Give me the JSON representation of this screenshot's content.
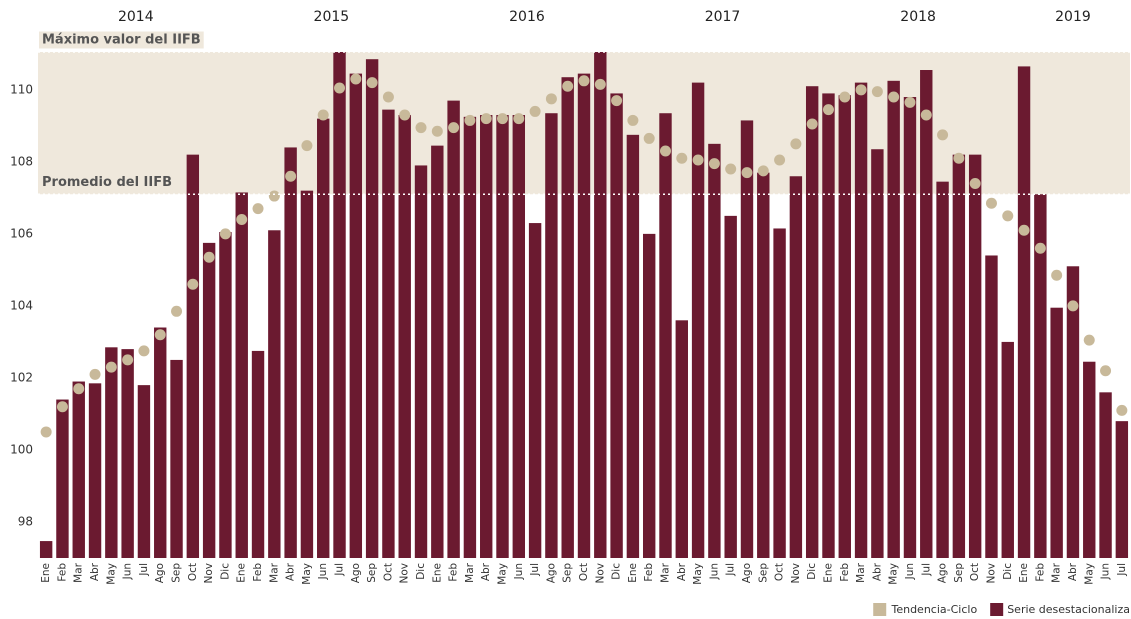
{
  "chart_data": {
    "type": "bar",
    "categories": [
      "Ene",
      "Feb",
      "Mar",
      "Abr",
      "May",
      "Jun",
      "Jul",
      "Ago",
      "Sep",
      "Oct",
      "Nov",
      "Dic",
      "Ene",
      "Feb",
      "Mar",
      "Abr",
      "May",
      "Jun",
      "Jul",
      "Ago",
      "Sep",
      "Oct",
      "Nov",
      "Dic",
      "Ene",
      "Feb",
      "Mar",
      "Abr",
      "May",
      "Jun",
      "Jul",
      "Ago",
      "Sep",
      "Oct",
      "Nov",
      "Dic",
      "Ene",
      "Feb",
      "Mar",
      "Abr",
      "May",
      "Jun",
      "Jul",
      "Ago",
      "Sep",
      "Oct",
      "Nov",
      "Dic",
      "Ene",
      "Feb",
      "Mar",
      "Abr",
      "May",
      "Jun",
      "Jul",
      "Ago",
      "Sep",
      "Oct",
      "Nov",
      "Dic",
      "Ene",
      "Feb",
      "Mar",
      "Abr",
      "May",
      "Jun",
      "Jul"
    ],
    "years": [
      {
        "label": "2014",
        "months": 12
      },
      {
        "label": "2015",
        "months": 12
      },
      {
        "label": "2016",
        "months": 12
      },
      {
        "label": "2017",
        "months": 12
      },
      {
        "label": "2018",
        "months": 12
      },
      {
        "label": "2019",
        "months": 7
      }
    ],
    "series": [
      {
        "name": "Tendencia-Ciclo",
        "type": "scatter",
        "color": "#c8b99a",
        "values": [
          100.5,
          101.2,
          101.7,
          102.1,
          102.3,
          102.5,
          102.75,
          103.2,
          103.85,
          104.6,
          105.35,
          106.0,
          106.4,
          106.7,
          107.05,
          107.6,
          108.45,
          109.3,
          110.05,
          110.3,
          110.2,
          109.8,
          109.3,
          108.95,
          108.85,
          108.95,
          109.15,
          109.2,
          109.2,
          109.2,
          109.4,
          109.75,
          110.1,
          110.25,
          110.15,
          109.7,
          109.15,
          108.65,
          108.3,
          108.1,
          108.05,
          107.95,
          107.8,
          107.7,
          107.75,
          108.05,
          108.5,
          109.05,
          109.45,
          109.8,
          110.0,
          109.95,
          109.8,
          109.65,
          109.3,
          108.75,
          108.1,
          107.4,
          106.85,
          106.5,
          106.1,
          105.6,
          104.85,
          104.0,
          103.05,
          102.2,
          101.1
        ]
      },
      {
        "name": "Serie desestacionaliza",
        "type": "bar",
        "color": "#6b1a30",
        "values": [
          97.47,
          101.4,
          101.9,
          101.85,
          102.85,
          102.8,
          101.8,
          103.4,
          102.5,
          108.2,
          105.75,
          106.05,
          107.15,
          102.75,
          106.1,
          108.4,
          107.2,
          109.2,
          111.05,
          110.45,
          110.85,
          109.45,
          109.3,
          107.9,
          108.45,
          109.7,
          109.25,
          109.3,
          109.3,
          109.3,
          106.3,
          109.35,
          110.35,
          110.45,
          111.05,
          109.9,
          108.75,
          106.0,
          109.35,
          103.6,
          110.2,
          108.5,
          106.5,
          109.15,
          107.7,
          106.15,
          107.6,
          110.1,
          109.9,
          109.85,
          110.2,
          108.35,
          110.25,
          109.8,
          110.55,
          107.45,
          108.2,
          108.2,
          105.4,
          103.0,
          110.65,
          107.1,
          103.95,
          105.1,
          102.45,
          101.6,
          100.8
        ]
      }
    ],
    "reference_lines": [
      {
        "label": "Máximo valor del IIFB",
        "value": 111.05
      },
      {
        "label": "Promedio del IIFB",
        "value": 107.1
      }
    ],
    "shade_color": "#efe8dc",
    "ylim": [
      97,
      111.05
    ],
    "yticks": [
      98,
      100,
      102,
      104,
      106,
      108,
      110
    ],
    "legend": "bottom-right"
  }
}
